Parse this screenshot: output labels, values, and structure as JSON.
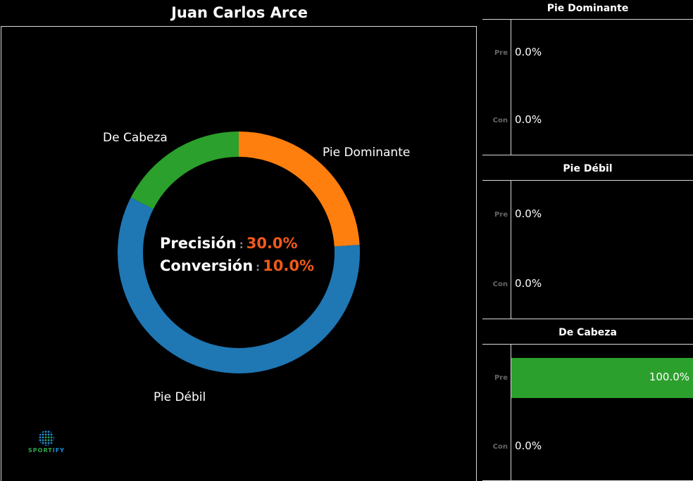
{
  "title": "Juan Carlos Arce",
  "donut": {
    "center": {
      "precision_label": "Precisión",
      "precision_sep": ":",
      "precision_value": "30.0%",
      "conversion_label": "Conversión",
      "conversion_sep": ":",
      "conversion_value": "10.0%"
    },
    "labels": {
      "pie_dominante": "Pie Dominante",
      "pie_debil": "Pie Débil",
      "de_cabeza": "De Cabeza"
    }
  },
  "logo": {
    "text_a": "SPORT",
    "text_b": "IFY"
  },
  "panels": [
    {
      "title": "Pie Dominante",
      "rows": [
        {
          "label": "Pre",
          "value": "0.0%"
        },
        {
          "label": "Con",
          "value": "0.0%"
        }
      ]
    },
    {
      "title": "Pie Débil",
      "rows": [
        {
          "label": "Pre",
          "value": "0.0%"
        },
        {
          "label": "Con",
          "value": "0.0%"
        }
      ]
    },
    {
      "title": "De Cabeza",
      "rows": [
        {
          "label": "Pre",
          "value": "100.0%"
        },
        {
          "label": "Con",
          "value": "0.0%"
        }
      ]
    }
  ],
  "colors": {
    "pie_dominante": "#ff7f0e",
    "pie_debil": "#1f77b4",
    "de_cabeza": "#2ca02c",
    "accent": "#f15a1a"
  },
  "chart_data": [
    {
      "type": "pie",
      "title": "Juan Carlos Arce",
      "subtitle": "Precisión : 30.0% / Conversión : 10.0%",
      "categories": [
        "Pie Dominante",
        "Pie Débil",
        "De Cabeza"
      ],
      "values": [
        24,
        58.5,
        17.5
      ],
      "colors": [
        "#ff7f0e",
        "#1f77b4",
        "#2ca02c"
      ],
      "hole": 0.79
    },
    {
      "type": "bar",
      "title": "Pie Dominante",
      "categories": [
        "Pre",
        "Con"
      ],
      "values": [
        0.0,
        0.0
      ],
      "xlim": [
        0,
        100
      ]
    },
    {
      "type": "bar",
      "title": "Pie Débil",
      "categories": [
        "Pre",
        "Con"
      ],
      "values": [
        0.0,
        0.0
      ],
      "xlim": [
        0,
        100
      ]
    },
    {
      "type": "bar",
      "title": "De Cabeza",
      "categories": [
        "Pre",
        "Con"
      ],
      "values": [
        100.0,
        0.0
      ],
      "xlim": [
        0,
        100
      ]
    }
  ]
}
